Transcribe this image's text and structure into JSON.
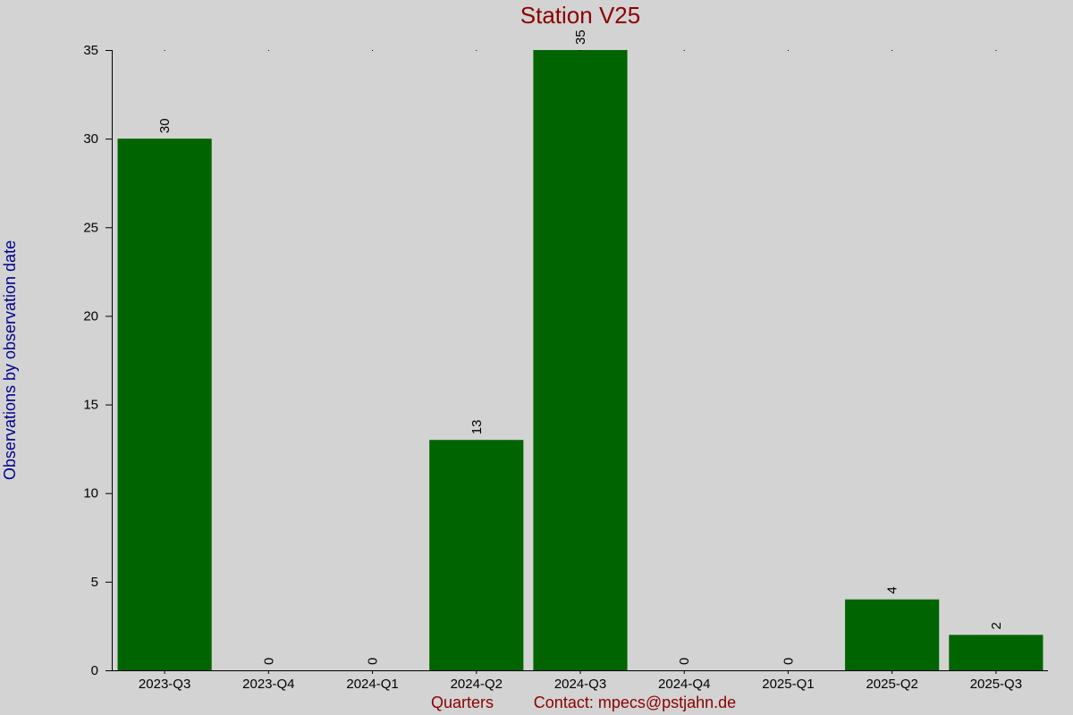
{
  "chart_data": {
    "type": "bar",
    "title": "Station V25",
    "xlabel": "Quarters",
    "ylabel": "Observations by observation date",
    "contact": "Contact: mpecs@pstjahn.de",
    "categories": [
      "2023-Q3",
      "2023-Q4",
      "2024-Q1",
      "2024-Q2",
      "2024-Q3",
      "2024-Q4",
      "2025-Q1",
      "2025-Q2",
      "2025-Q3"
    ],
    "values": [
      30,
      0,
      0,
      13,
      35,
      0,
      0,
      4,
      2
    ],
    "value_labels": [
      "30",
      "0",
      "0",
      "13",
      "35",
      "0",
      "0",
      "4",
      "2"
    ],
    "ylim": [
      0,
      35
    ],
    "yticks": [
      0,
      5,
      10,
      15,
      20,
      25,
      30,
      35
    ],
    "ytick_labels": [
      "0",
      "5",
      "10",
      "15",
      "20",
      "25",
      "30",
      "35"
    ],
    "grid": false,
    "colors": {
      "background": "#d3d3d3",
      "bar": "#006400",
      "title": "#8b0000",
      "ylabel": "#00008b",
      "xlabel": "#8b0000"
    }
  }
}
